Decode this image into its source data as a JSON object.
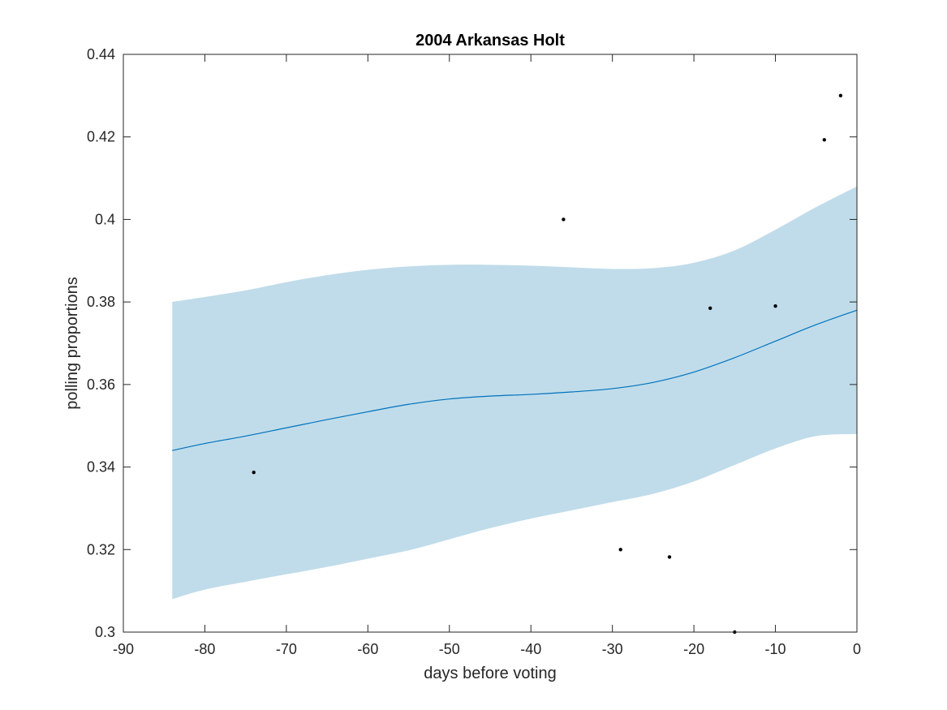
{
  "chart_data": {
    "type": "line",
    "title": "2004 Arkansas Holt",
    "xlabel": "days before voting",
    "ylabel": "polling proportions",
    "xlim": [
      -90,
      0
    ],
    "ylim": [
      0.3,
      0.44
    ],
    "xticks": [
      -90,
      -80,
      -70,
      -60,
      -50,
      -40,
      -30,
      -20,
      -10,
      0
    ],
    "yticks": [
      0.3,
      0.32,
      0.34,
      0.36,
      0.38,
      0.4,
      0.42,
      0.44
    ],
    "xtick_labels": [
      "-90",
      "-80",
      "-70",
      "-60",
      "-50",
      "-40",
      "-30",
      "-20",
      "-10",
      "0"
    ],
    "ytick_labels": [
      "0.3",
      "0.32",
      "0.34",
      "0.36",
      "0.38",
      "0.4",
      "0.42",
      "0.44"
    ],
    "grid": false,
    "colors": {
      "band": "#c0dcea",
      "line": "#0072bd",
      "points": "#000000",
      "axes": "#262626"
    },
    "trend": {
      "x": [
        -84,
        -80,
        -75,
        -70,
        -65,
        -60,
        -55,
        -50,
        -45,
        -40,
        -35,
        -30,
        -25,
        -20,
        -15,
        -10,
        -5,
        0
      ],
      "mean": [
        0.344,
        0.3457,
        0.3475,
        0.3495,
        0.3515,
        0.3534,
        0.3552,
        0.3565,
        0.3572,
        0.3576,
        0.3582,
        0.359,
        0.3605,
        0.363,
        0.3665,
        0.3705,
        0.3745,
        0.378
      ],
      "upper": [
        0.38,
        0.3812,
        0.3828,
        0.3848,
        0.3865,
        0.3878,
        0.3886,
        0.389,
        0.389,
        0.3888,
        0.3884,
        0.388,
        0.3882,
        0.3895,
        0.3925,
        0.3975,
        0.403,
        0.408
      ],
      "lower": [
        0.308,
        0.3103,
        0.3122,
        0.314,
        0.3158,
        0.3178,
        0.3198,
        0.3225,
        0.3252,
        0.3275,
        0.3295,
        0.3315,
        0.3335,
        0.3365,
        0.3405,
        0.3445,
        0.3475,
        0.348
      ]
    },
    "points": [
      {
        "x": -74,
        "y": 0.3387
      },
      {
        "x": -36,
        "y": 0.4
      },
      {
        "x": -29,
        "y": 0.32
      },
      {
        "x": -23,
        "y": 0.3182
      },
      {
        "x": -18,
        "y": 0.3785
      },
      {
        "x": -15,
        "y": 0.3
      },
      {
        "x": -10,
        "y": 0.379
      },
      {
        "x": -4,
        "y": 0.4193
      },
      {
        "x": -2,
        "y": 0.43
      }
    ]
  }
}
